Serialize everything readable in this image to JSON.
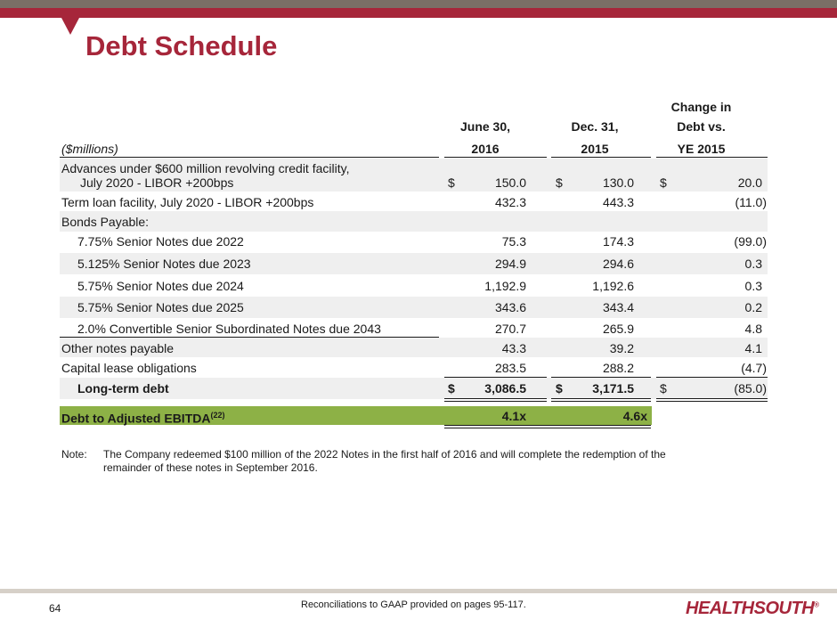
{
  "title": "Debt Schedule",
  "units_label": "($millions)",
  "columns": [
    {
      "line1": "",
      "line2": "June 30,",
      "line3": "2016"
    },
    {
      "line1": "",
      "line2": "Dec. 31,",
      "line3": "2015"
    },
    {
      "line1": "Change in",
      "line2": "Debt vs.",
      "line3": "YE 2015"
    }
  ],
  "rows": [
    {
      "label_line1": "Advances under $600 million revolving credit facility,",
      "label_line2": "July 2020 - LIBOR +200bps",
      "cur": "$",
      "c1": "150.0",
      "c2": "130.0",
      "c3": "20.0"
    },
    {
      "label": "Term loan facility, July 2020 - LIBOR +200bps",
      "c1": "432.3",
      "c2": "443.3",
      "c3": "(11.0)"
    },
    {
      "label": "Bonds Payable:"
    },
    {
      "label": "7.75% Senior Notes due 2022",
      "c1": "75.3",
      "c2": "174.3",
      "c3": "(99.0)"
    },
    {
      "label": "5.125% Senior Notes due 2023",
      "c1": "294.9",
      "c2": "294.6",
      "c3": "0.3"
    },
    {
      "label": "5.75% Senior Notes due 2024",
      "c1": "1,192.9",
      "c2": "1,192.6",
      "c3": "0.3"
    },
    {
      "label": "5.75% Senior Notes due 2025",
      "c1": "343.6",
      "c2": "343.4",
      "c3": "0.2"
    },
    {
      "label": "2.0% Convertible Senior Subordinated Notes due 2043",
      "c1": "270.7",
      "c2": "265.9",
      "c3": "4.8"
    },
    {
      "label": "Other notes payable",
      "c1": "43.3",
      "c2": "39.2",
      "c3": "4.1"
    },
    {
      "label": "Capital lease obligations",
      "c1": "283.5",
      "c2": "288.2",
      "c3": "(4.7)"
    },
    {
      "label": "Long-term debt",
      "cur": "$",
      "c1": "3,086.5",
      "c2": "3,171.5",
      "c3": "(85.0)"
    }
  ],
  "ebitda": {
    "label": "Debt to Adjusted EBITDA",
    "sup": "(22)",
    "c1": "4.1x",
    "c2": "4.6x"
  },
  "note": {
    "prefix": "Note:",
    "line1": "The Company redeemed $100 million of the 2022 Notes in the first half of 2016 and will complete the redemption of the",
    "line2": "remainder of these notes in September 2016."
  },
  "footer": {
    "page": "64",
    "text": "Reconciliations to GAAP provided on pages 95-117.",
    "logo": "HEALTHSOUTH",
    "logo_mark": "®"
  },
  "colors": {
    "accent": "#a6263a",
    "highlight": "#8db146"
  }
}
